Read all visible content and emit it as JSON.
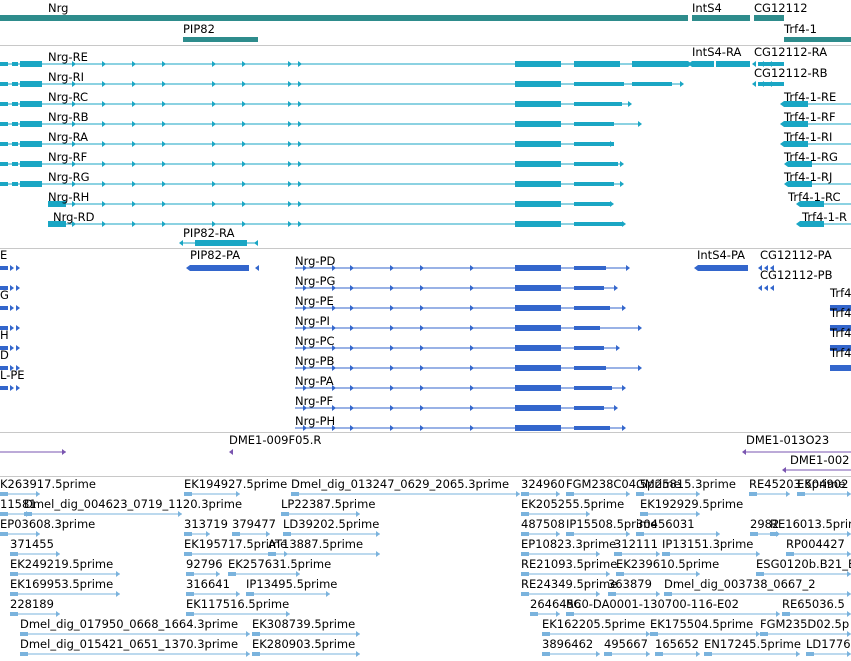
{
  "colors": {
    "gene": "#2e8c8c",
    "transcript": "#1aa6c4",
    "protein": "#3366cc",
    "clone": "#7a55b0",
    "est": "#7ab3dd",
    "divider": "#c8c8c8"
  },
  "tracks": {
    "genes": [
      "Nrg",
      "PIP82",
      "IntS4",
      "CG12112",
      "Trf4-1"
    ],
    "transcripts": [
      "Nrg-RE",
      "Nrg-RI",
      "Nrg-RC",
      "Nrg-RB",
      "Nrg-RA",
      "Nrg-RF",
      "Nrg-RG",
      "Nrg-RH",
      "Nrg-RD",
      "PIP82-RA",
      "IntS4-RA",
      "CG12112-RA",
      "CG12112-RB",
      "Trf4-1-RE",
      "Trf4-1-RF",
      "Trf4-1-RI",
      "Trf4-1-RG",
      "Trf4-1-RJ",
      "Trf4-1-RC",
      "Trf4-1-R"
    ],
    "proteins": [
      "PIP82-PA",
      "Nrg-PD",
      "Nrg-PG",
      "Nrg-PE",
      "Nrg-PI",
      "Nrg-PC",
      "Nrg-PB",
      "Nrg-PA",
      "Nrg-PF",
      "Nrg-PH",
      "IntS4-PA",
      "CG12112-PA",
      "CG12112-PB",
      "Trf4",
      "Trf4",
      "Trf4",
      "Trf4",
      "Trf4",
      "E",
      "G",
      "H",
      "D",
      "L-PE"
    ],
    "clones": [
      "DME1-009F05.R",
      "DME1-013O23",
      "DME1-002"
    ],
    "ests": [
      "K263917.5prime",
      "EK194927.5prime",
      "Dmel_dig_013247_0629_2065.3prime",
      "324960",
      "FGM238C04.5prime",
      "GM25815.3prime",
      "RE45203.5prime",
      "EK04902",
      "11581",
      "Dmel_dig_004623_0719_1120.3prime",
      "LP22387.5prime",
      "EK205255.5prime",
      "EK192929.5prime",
      "EP03608.3prime",
      "313719",
      "379477",
      "LD39202.5prime",
      "487508",
      "IP15508.5prime",
      "30456031",
      "2982",
      "RE16013.5prime",
      "371455",
      "EK195717.5prime",
      "AT13887.5prime",
      "EP10823.3prime",
      "312111",
      "IP13151.3prime",
      "RP004427",
      "EK249219.5prime",
      "92796",
      "EK257631.5prime",
      "RE21093.5prime",
      "EK239610.5prime",
      "ESG0120b.B21_E",
      "EK169953.5prime",
      "316641",
      "IP13495.5prime",
      "RE24349.5prime",
      "363879",
      "Dmel_dig_003738_0667_2",
      "228189",
      "EK117516.5prime",
      "2646456",
      "RC0-DA0001-130700-116-E02",
      "RE65036.5",
      "Dmel_dig_017950_0668_1664.3prime",
      "EK308739.5prime",
      "EK162205.5prime",
      "EK175504.5prime",
      "FGM235D02.5p",
      "Dmel_dig_015421_0651_1370.3prime",
      "EK280903.5prime",
      "3896462",
      "495667",
      "165652",
      "EN17245.5prime",
      "LD1776"
    ]
  }
}
